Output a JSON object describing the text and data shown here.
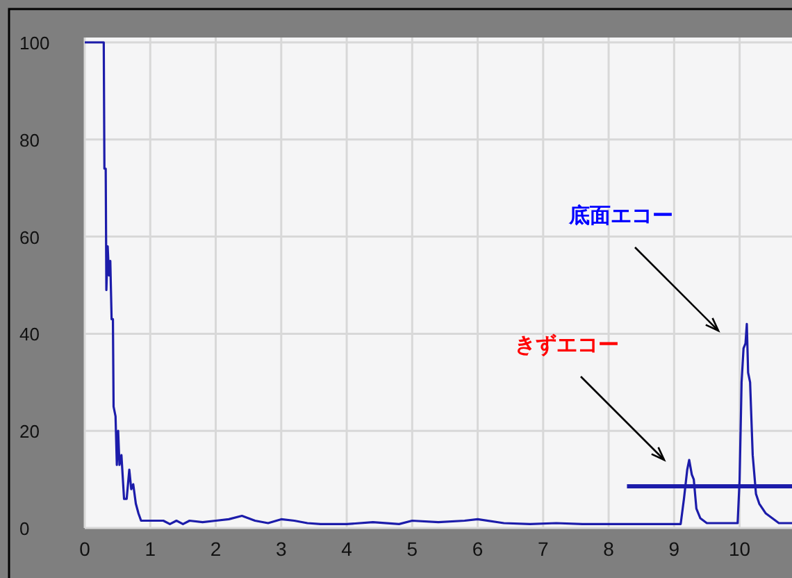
{
  "chart_data": {
    "type": "line",
    "xlim": [
      0,
      10.8
    ],
    "ylim": [
      0,
      101
    ],
    "xticks": [
      0,
      1,
      2,
      3,
      4,
      5,
      6,
      7,
      8,
      9,
      10
    ],
    "yticks": [
      0,
      20,
      40,
      60,
      80,
      100
    ],
    "grid": true,
    "marker": "none",
    "line_style": "solid",
    "series": [
      {
        "color": "#1c1caa",
        "x": [
          0,
          0.29,
          0.3,
          0.32,
          0.33,
          0.35,
          0.37,
          0.39,
          0.41,
          0.43,
          0.44,
          0.47,
          0.49,
          0.51,
          0.53,
          0.56,
          0.6,
          0.64,
          0.68,
          0.71,
          0.74,
          0.78,
          0.82,
          0.86,
          1.0,
          1.2,
          1.3,
          1.4,
          1.5,
          1.6,
          1.8,
          2.0,
          2.2,
          2.4,
          2.6,
          2.8,
          3.0,
          3.2,
          3.4,
          3.6,
          4.0,
          4.4,
          4.8,
          5.0,
          5.4,
          5.8,
          6.0,
          6.4,
          6.8,
          7.2,
          7.6,
          8.0,
          8.6,
          9.0,
          9.1,
          9.15,
          9.2,
          9.23,
          9.27,
          9.3,
          9.34,
          9.4,
          9.5,
          9.9,
          9.97,
          10.0,
          10.03,
          10.06,
          10.09,
          10.11,
          10.13,
          10.16,
          10.2,
          10.25,
          10.3,
          10.4,
          10.5,
          10.6,
          10.8
        ],
        "values": [
          100,
          100,
          74,
          74,
          49,
          58,
          52,
          55,
          43,
          43,
          25,
          23,
          13,
          20,
          13,
          15,
          6,
          6,
          12,
          8,
          9,
          5,
          3,
          1.5,
          1.5,
          1.5,
          0.8,
          1.5,
          0.8,
          1.5,
          1.2,
          1.5,
          1.8,
          2.5,
          1.5,
          1.0,
          1.8,
          1.5,
          1.0,
          0.8,
          0.8,
          1.2,
          0.8,
          1.5,
          1.2,
          1.5,
          1.8,
          1.0,
          0.8,
          1.0,
          0.8,
          0.8,
          0.8,
          0.8,
          0.8,
          6,
          12,
          14,
          11,
          10,
          4,
          2,
          1,
          1,
          1,
          10,
          30,
          37,
          38,
          42,
          32,
          30,
          15,
          7,
          5,
          3,
          2,
          1,
          1
        ]
      },
      {
        "color": "#1c1caa",
        "x": [
          8.28,
          10.8
        ],
        "values": [
          8.6,
          8.6
        ]
      }
    ],
    "annotations": [
      "底面エコー",
      "きずエコー"
    ]
  }
}
